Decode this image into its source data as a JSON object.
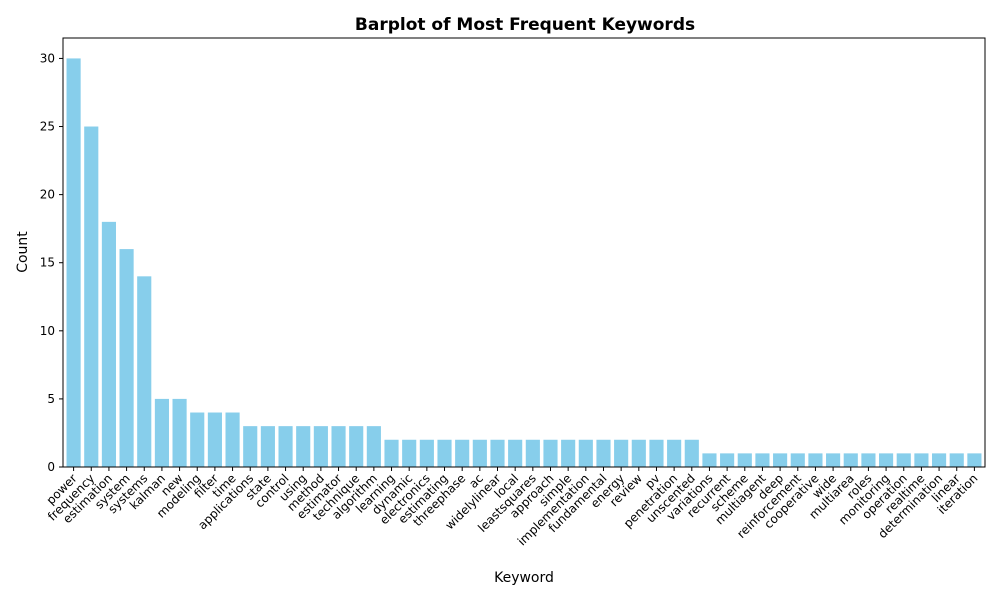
{
  "chart_data": {
    "type": "bar",
    "title": "Barplot of Most Frequent Keywords",
    "xlabel": "Keyword",
    "ylabel": "Count",
    "ylim": [
      0,
      31.5
    ],
    "yticks": [
      "0",
      "5",
      "10",
      "15",
      "20",
      "25",
      "30"
    ],
    "bar_color": "#87ceeb",
    "grid": false,
    "categories": [
      "power",
      "frequency",
      "estimation",
      "system",
      "systems",
      "kalman",
      "new",
      "modeling",
      "filter",
      "time",
      "applications",
      "state",
      "control",
      "using",
      "method",
      "estimator",
      "technique",
      "algorithm",
      "learning",
      "dynamic",
      "electronics",
      "estimating",
      "threephase",
      "ac",
      "widelylinear",
      "local",
      "leastsquares",
      "approach",
      "simple",
      "implementation",
      "fundamental",
      "energy",
      "review",
      "pv",
      "penetration",
      "unscented",
      "variations",
      "recurrent",
      "scheme",
      "multiagent",
      "deep",
      "reinforcement",
      "cooperative",
      "wide",
      "multiarea",
      "roles",
      "monitoring",
      "operation",
      "realtime",
      "determination",
      "linear",
      "iteration"
    ],
    "values": [
      30,
      25,
      18,
      16,
      14,
      5,
      5,
      4,
      4,
      4,
      3,
      3,
      3,
      3,
      3,
      3,
      3,
      3,
      2,
      2,
      2,
      2,
      2,
      2,
      2,
      2,
      2,
      2,
      2,
      2,
      2,
      2,
      2,
      2,
      2,
      2,
      1,
      1,
      1,
      1,
      1,
      1,
      1,
      1,
      1,
      1,
      1,
      1,
      1,
      1,
      1,
      1
    ]
  }
}
